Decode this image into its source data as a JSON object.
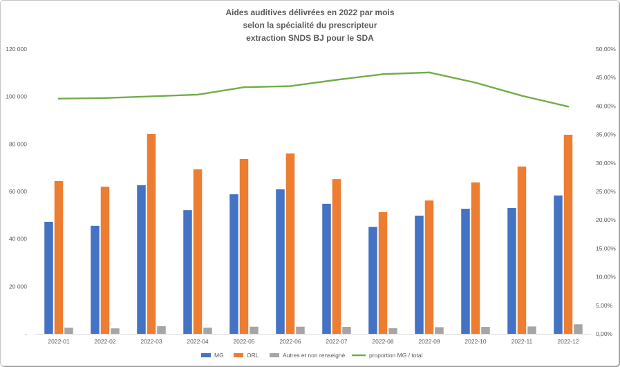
{
  "chart_data": {
    "type": "bar",
    "title_lines": [
      "Aides auditives délivrées en 2022 par mois",
      "selon la spécialité du prescripteur",
      "extraction SNDS BJ pour le SDA"
    ],
    "categories": [
      "2022-01",
      "2022-02",
      "2022-03",
      "2022-04",
      "2022-05",
      "2022-06",
      "2022-07",
      "2022-08",
      "2022-09",
      "2022-10",
      "2022-11",
      "2022-12"
    ],
    "series": [
      {
        "name": "MG",
        "kind": "bar",
        "axis": "left",
        "color": "#4472C4",
        "values": [
          47200,
          45500,
          62600,
          52100,
          58800,
          60900,
          54800,
          45100,
          49800,
          52700,
          53000,
          58300
        ]
      },
      {
        "name": "ORL",
        "kind": "bar",
        "axis": "left",
        "color": "#ED7D31",
        "values": [
          64400,
          62000,
          84200,
          69300,
          73700,
          76000,
          65200,
          51300,
          56200,
          63800,
          70500,
          83900
        ]
      },
      {
        "name": "Autres et non renseigné",
        "kind": "bar",
        "axis": "left",
        "color": "#A5A5A5",
        "values": [
          2600,
          2300,
          3200,
          2600,
          3000,
          3000,
          2900,
          2400,
          2800,
          2900,
          3100,
          4000
        ]
      },
      {
        "name": "proportion MG / total",
        "kind": "line",
        "axis": "right",
        "color": "#70AD47",
        "values": [
          41.3,
          41.4,
          41.7,
          42.0,
          43.3,
          43.5,
          44.6,
          45.6,
          45.9,
          44.1,
          41.8,
          39.9
        ]
      }
    ],
    "y_left": {
      "range": [
        0,
        120000
      ],
      "step": 20000,
      "tick_labels": [
        "-",
        "20 000",
        "40 000",
        "60 000",
        "80 000",
        "100 000",
        "120 000"
      ]
    },
    "y_right": {
      "range": [
        0,
        50
      ],
      "step": 5,
      "tick_labels": [
        "0,00%",
        "5,00%",
        "10,00%",
        "15,00%",
        "20,00%",
        "25,00%",
        "30,00%",
        "35,00%",
        "40,00%",
        "45,00%",
        "50,00%"
      ]
    },
    "grid": false,
    "legend": "bottom"
  }
}
